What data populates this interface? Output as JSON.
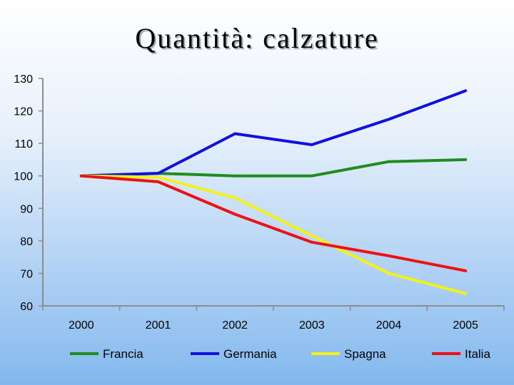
{
  "slide": {
    "title": "Quantità: calzature"
  },
  "chart_data": {
    "type": "line",
    "title": "Quantità: calzature",
    "xlabel": "",
    "ylabel": "",
    "categories": [
      "2000",
      "2001",
      "2002",
      "2003",
      "2004",
      "2005"
    ],
    "ylim": [
      60,
      130
    ],
    "yticks": [
      60,
      70,
      80,
      90,
      100,
      110,
      120,
      130
    ],
    "grid": false,
    "legend_position": "bottom",
    "series": [
      {
        "name": "Francia",
        "color": "#1e8c1e",
        "values": [
          100,
          100.8,
          100,
          100,
          104.4,
          105
        ]
      },
      {
        "name": "Germania",
        "color": "#1010e0",
        "values": [
          100,
          100.8,
          113,
          109.6,
          117.4,
          126.2
        ]
      },
      {
        "name": "Spagna",
        "color": "#f2f21a",
        "values": [
          100,
          99.6,
          93.2,
          81.6,
          70,
          63.8
        ]
      },
      {
        "name": "Italia",
        "color": "#ee1111",
        "values": [
          100,
          98.2,
          88.2,
          79.6,
          75.4,
          70.8
        ]
      }
    ]
  }
}
